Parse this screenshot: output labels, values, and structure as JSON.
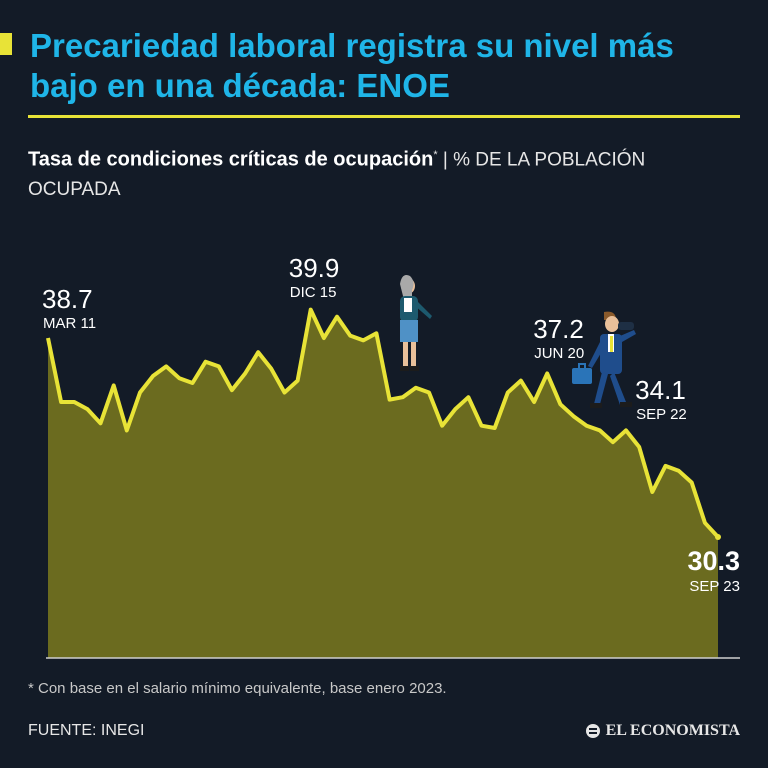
{
  "header": {
    "title": "Precariedad laboral registra su nivel más bajo en una década: ENOE",
    "subtitle_bold": "Tasa de condiciones críticas de ocupación",
    "subtitle_mark": "*",
    "subtitle_rest": "| % DE LA POBLACIÓN OCUPADA"
  },
  "footer": {
    "footnote": "* Con base en el salario mínimo equivalente, base enero 2023.",
    "source": "FUENTE: INEGI",
    "brand": "EL ECONOMISTA"
  },
  "colors": {
    "background": "#131b27",
    "title": "#1fb5e8",
    "accent": "#e8e337",
    "area_fill": "#6b6b1f",
    "line": "#e8e337"
  },
  "icons": [
    "woman-figure-icon",
    "businessman-binoculars-icon",
    "newspaper-logo-icon"
  ],
  "chart_data": {
    "type": "area",
    "grid": false,
    "ylim": [
      20,
      42
    ],
    "values": [
      38.7,
      36.0,
      36.0,
      35.7,
      35.1,
      36.7,
      34.8,
      36.4,
      37.1,
      37.5,
      37.0,
      36.8,
      37.7,
      37.5,
      36.5,
      37.2,
      38.1,
      37.4,
      36.4,
      36.9,
      39.9,
      38.7,
      39.6,
      38.8,
      38.6,
      38.9,
      36.1,
      36.2,
      36.6,
      36.4,
      35.0,
      35.7,
      36.2,
      35.0,
      34.9,
      36.4,
      36.9,
      36.0,
      37.2,
      35.9,
      35.4,
      35.0,
      34.8,
      34.3,
      34.8,
      34.1,
      32.2,
      33.3,
      33.1,
      32.6,
      30.9,
      30.3
    ],
    "annotations": [
      {
        "index": 0,
        "value": "38.7",
        "label": "MAR 11"
      },
      {
        "index": 20,
        "value": "39.9",
        "label": "DIC 15"
      },
      {
        "index": 38,
        "value": "37.2",
        "label": "JUN 20"
      },
      {
        "index": 45,
        "value": "34.1",
        "label": "SEP 22"
      },
      {
        "index": 51,
        "value": "30.3",
        "label": "SEP 23"
      }
    ]
  }
}
